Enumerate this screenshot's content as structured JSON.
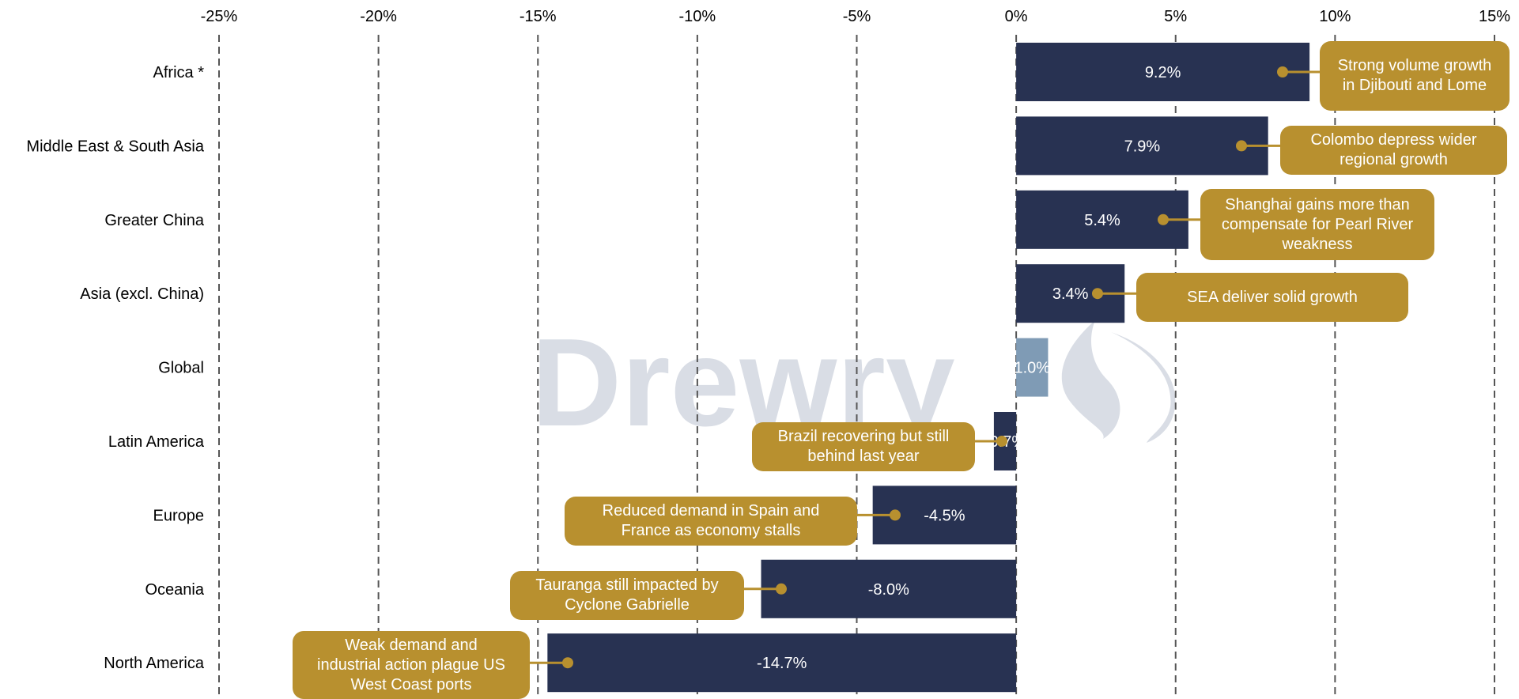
{
  "chart_data": {
    "type": "bar",
    "orientation": "horizontal",
    "categories": [
      "Africa *",
      "Middle East & South Asia",
      "Greater China",
      "Asia (excl. China)",
      "Global",
      "Latin America",
      "Europe",
      "Oceania",
      "North America"
    ],
    "values": [
      9.2,
      7.9,
      5.4,
      3.4,
      1.0,
      -0.7,
      -4.5,
      -8.0,
      -14.7
    ],
    "value_labels": [
      "9.2%",
      "7.9%",
      "5.4%",
      "3.4%",
      "1.0%",
      "-0.7%",
      "-4.5%",
      "-8.0%",
      "-14.7%"
    ],
    "xlim": [
      -25,
      15
    ],
    "x_ticks": [
      -25,
      -20,
      -15,
      -10,
      -5,
      0,
      5,
      10,
      15
    ],
    "x_tick_labels": [
      "-25%",
      "-20%",
      "-15%",
      "-10%",
      "-5%",
      "0%",
      "5%",
      "10%",
      "15%"
    ],
    "x_axis_position": "top",
    "grid": "vertical dashed",
    "title": "",
    "xlabel": "",
    "ylabel": "",
    "annotations": [
      {
        "category": "Africa *",
        "lines": [
          "Strong volume growth",
          "in Djibouti and Lome"
        ]
      },
      {
        "category": "Middle East & South Asia",
        "lines": [
          "Colombo depress wider",
          "regional growth"
        ]
      },
      {
        "category": "Greater China",
        "lines": [
          "Shanghai gains more than",
          "compensate for Pearl River",
          "weakness"
        ]
      },
      {
        "category": "Asia (excl. China)",
        "lines": [
          "SEA deliver solid growth"
        ]
      },
      {
        "category": "Latin America",
        "lines": [
          "Brazil recovering but still",
          "behind last year"
        ]
      },
      {
        "category": "Europe",
        "lines": [
          "Reduced demand in Spain and",
          "France as economy stalls"
        ]
      },
      {
        "category": "Oceania",
        "lines": [
          "Tauranga still impacted by",
          "Cyclone Gabrielle"
        ]
      },
      {
        "category": "North America",
        "lines": [
          "Weak demand and",
          "industrial action plague US",
          "West Coast ports"
        ]
      }
    ],
    "highlight_category": "Global"
  },
  "watermark": {
    "text": "Drewry",
    "color": "#d9dde5"
  },
  "colors": {
    "bar": "#283252",
    "bar_highlight": "#7f9bb5",
    "callout": "#b8902f",
    "grid": "#555555",
    "text": "#000000",
    "bar_label": "#ffffff"
  }
}
